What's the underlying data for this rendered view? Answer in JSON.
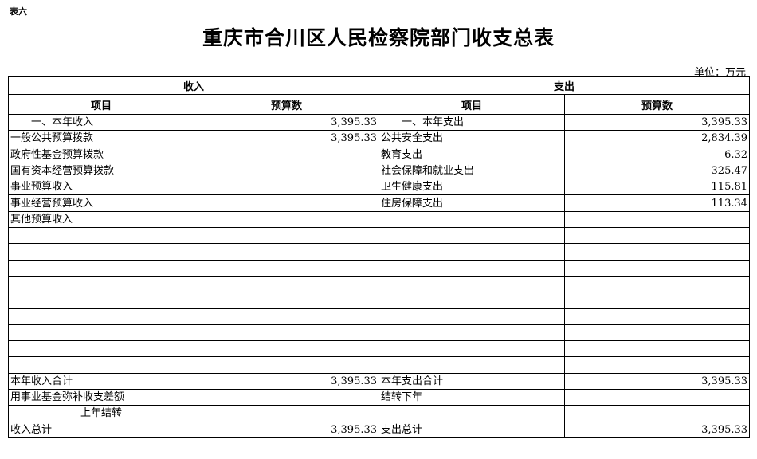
{
  "table_tag": "表六",
  "title": "重庆市合川区人民检察院部门收支总表",
  "unit": "单位：万元",
  "headers": {
    "income": "收入",
    "expense": "支出",
    "item": "项目",
    "budget": "预算数"
  },
  "rows": [
    {
      "in_item": "一、本年收入",
      "in_val": "3,395.33",
      "out_item": "一、本年支出",
      "out_val": "3,395.33"
    },
    {
      "in_item": "一般公共预算拨款",
      "in_val": "3,395.33",
      "out_item": "公共安全支出",
      "out_val": "2,834.39"
    },
    {
      "in_item": "政府性基金预算拨款",
      "in_val": "",
      "out_item": "教育支出",
      "out_val": "6.32"
    },
    {
      "in_item": "国有资本经营预算拨款",
      "in_val": "",
      "out_item": "社会保障和就业支出",
      "out_val": "325.47"
    },
    {
      "in_item": "事业预算收入",
      "in_val": "",
      "out_item": "卫生健康支出",
      "out_val": "115.81"
    },
    {
      "in_item": "事业经营预算收入",
      "in_val": "",
      "out_item": "住房保障支出",
      "out_val": "113.34"
    },
    {
      "in_item": "其他预算收入",
      "in_val": "",
      "out_item": "",
      "out_val": ""
    },
    {
      "in_item": "",
      "in_val": "",
      "out_item": "",
      "out_val": ""
    },
    {
      "in_item": "",
      "in_val": "",
      "out_item": "",
      "out_val": ""
    },
    {
      "in_item": "",
      "in_val": "",
      "out_item": "",
      "out_val": ""
    },
    {
      "in_item": "",
      "in_val": "",
      "out_item": "",
      "out_val": ""
    },
    {
      "in_item": "",
      "in_val": "",
      "out_item": "",
      "out_val": ""
    },
    {
      "in_item": "",
      "in_val": "",
      "out_item": "",
      "out_val": ""
    },
    {
      "in_item": "",
      "in_val": "",
      "out_item": "",
      "out_val": ""
    },
    {
      "in_item": "",
      "in_val": "",
      "out_item": "",
      "out_val": ""
    },
    {
      "in_item": "",
      "in_val": "",
      "out_item": "",
      "out_val": ""
    },
    {
      "in_item": "本年收入合计",
      "in_val": "3,395.33",
      "out_item": "本年支出合计",
      "out_val": "3,395.33"
    },
    {
      "in_item": "用事业基金弥补收支差额",
      "in_val": "",
      "out_item": "结转下年",
      "out_val": ""
    },
    {
      "in_item": "上年结转",
      "in_val": "",
      "out_item": "",
      "out_val": ""
    },
    {
      "in_item": "收入总计",
      "in_val": "3,395.33",
      "out_item": "支出总计",
      "out_val": "3,395.33"
    }
  ]
}
